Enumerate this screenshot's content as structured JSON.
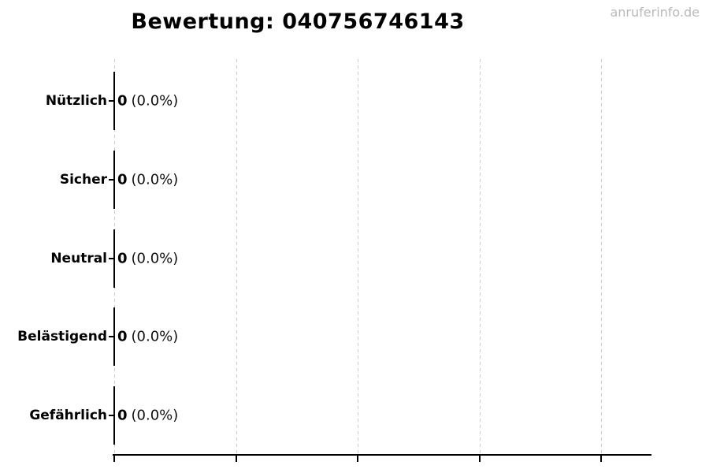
{
  "watermark": "anruferinfo.de",
  "chart_data": {
    "type": "bar",
    "orientation": "horizontal",
    "title": "Bewertung: 040756746143",
    "categories": [
      "Nützlich",
      "Sicher",
      "Neutral",
      "Belästigend",
      "Gefährlich"
    ],
    "values": [
      0,
      0,
      0,
      0,
      0
    ],
    "value_labels": [
      {
        "count": "0",
        "percent": "(0.0%)"
      },
      {
        "count": "0",
        "percent": "(0.0%)"
      },
      {
        "count": "0",
        "percent": "(0.0%)"
      },
      {
        "count": "0",
        "percent": "(0.0%)"
      },
      {
        "count": "0",
        "percent": "(0.0%)"
      }
    ],
    "xlabel": "",
    "ylabel": "",
    "x_tick_labels": [],
    "x_gridline_count": 5,
    "grid": "vertical-dashed",
    "legend": "none",
    "colors": {
      "text": "#000000",
      "bar": "#000000",
      "gridline": "#cccccc",
      "axis": "#000000",
      "watermark": "#b9b9b9",
      "background": "#ffffff"
    }
  }
}
